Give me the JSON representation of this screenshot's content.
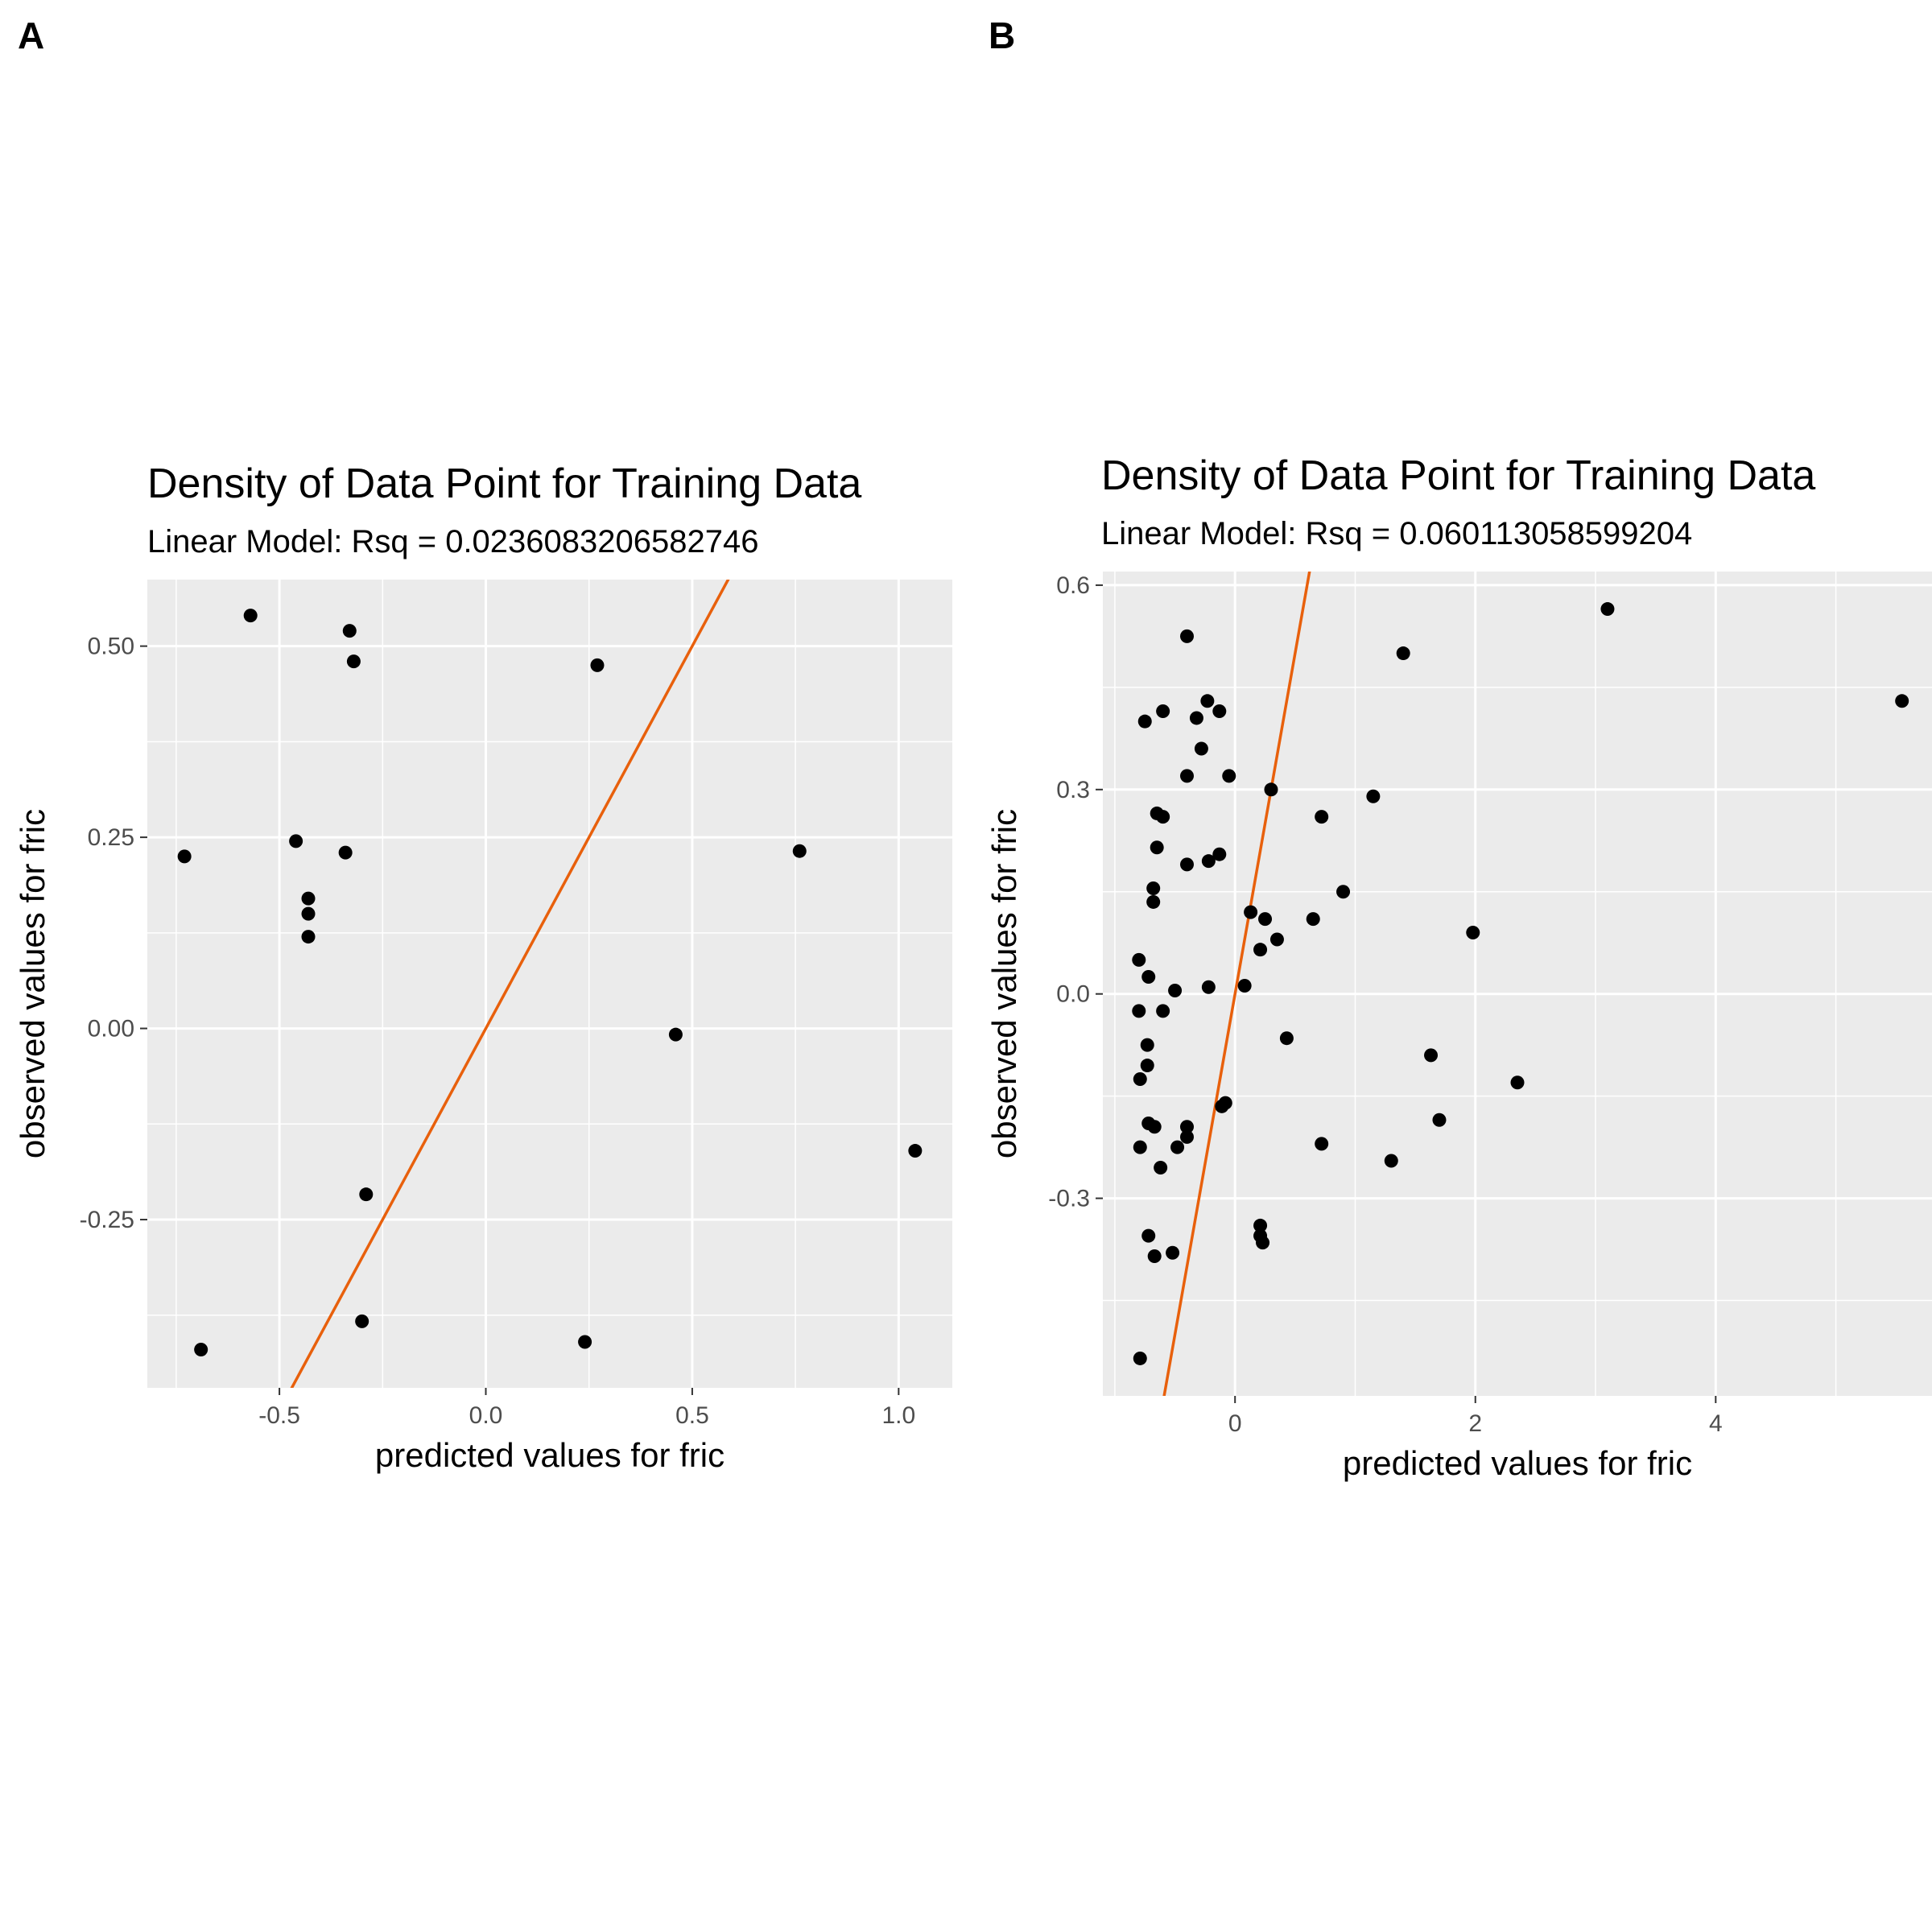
{
  "panels": [
    {
      "tag": "A",
      "chart_data": {
        "type": "scatter",
        "title": "Density of Data Point for Training Data",
        "subtitle": "Linear Model: Rsq = 0.0236083206582746",
        "xlabel": "predicted values for fric",
        "ylabel": "observed values for fric",
        "xlim": [
          -0.82,
          1.13
        ],
        "ylim": [
          -0.47,
          0.587
        ],
        "x_ticks": [
          -0.5,
          0.0,
          0.5,
          1.0
        ],
        "x_tick_labels": [
          "-0.5",
          "0.0",
          "0.5",
          "1.0"
        ],
        "y_ticks": [
          -0.25,
          0.0,
          0.25,
          0.5
        ],
        "y_tick_labels": [
          "-0.25",
          "0.00",
          "0.25",
          "0.50"
        ],
        "grid": true,
        "points": {
          "x": [
            -0.57,
            -0.33,
            -0.32,
            0.27,
            -0.73,
            -0.46,
            -0.34,
            0.76,
            -0.43,
            -0.43,
            -0.43,
            0.46,
            1.04,
            -0.29,
            -0.3,
            -0.69,
            0.24
          ],
          "y": [
            0.54,
            0.52,
            0.48,
            0.475,
            0.225,
            0.245,
            0.23,
            0.232,
            0.17,
            0.15,
            0.12,
            -0.008,
            -0.16,
            -0.217,
            -0.383,
            -0.42,
            -0.41
          ]
        },
        "reference_line": {
          "slope": 1,
          "intercept": 0,
          "color": "#e8600c"
        }
      }
    },
    {
      "tag": "B",
      "chart_data": {
        "type": "scatter",
        "title": "Density of Data Point for Training Data",
        "subtitle": "Linear Model: Rsq = 0.060113058599204",
        "xlabel": "predicted values for fric",
        "ylabel": "observed values for fric",
        "xlim": [
          -1.1,
          5.8
        ],
        "ylim": [
          -0.59,
          0.62
        ],
        "x_ticks": [
          0,
          2,
          4
        ],
        "x_tick_labels": [
          "0",
          "2",
          "4"
        ],
        "y_ticks": [
          -0.3,
          0.0,
          0.3,
          0.6
        ],
        "y_tick_labels": [
          "-0.3",
          "0.0",
          "0.3",
          "0.6"
        ],
        "grid": true,
        "points": {
          "x": [
            -0.4,
            3.1,
            1.4,
            5.55,
            -0.75,
            -0.6,
            -0.23,
            -0.32,
            -0.13,
            -0.28,
            -0.4,
            -0.05,
            0.3,
            1.15,
            0.72,
            -0.6,
            -0.65,
            -0.65,
            -0.13,
            -0.4,
            -0.22,
            -0.68,
            -0.68,
            0.9,
            0.13,
            0.25,
            0.65,
            1.98,
            0.21,
            0.35,
            -0.8,
            -0.72,
            0.08,
            -0.5,
            -0.22,
            -0.8,
            -0.6,
            0.43,
            -0.73,
            1.63,
            -0.73,
            -0.79,
            2.35,
            -0.08,
            -0.11,
            -0.72,
            -0.67,
            -0.4,
            1.7,
            -0.4,
            0.72,
            -0.48,
            1.3,
            -0.62,
            -0.79,
            0.21,
            -0.72,
            0.21,
            0.23,
            -0.52,
            -0.67,
            -0.79
          ],
          "y": [
            0.525,
            0.565,
            0.5,
            0.43,
            0.4,
            0.415,
            0.43,
            0.405,
            0.415,
            0.36,
            0.32,
            0.32,
            0.3,
            0.29,
            0.26,
            0.26,
            0.265,
            0.215,
            0.205,
            0.19,
            0.195,
            0.155,
            0.135,
            0.15,
            0.12,
            0.11,
            0.11,
            0.09,
            0.065,
            0.08,
            0.05,
            0.025,
            0.012,
            0.005,
            0.01,
            -0.025,
            -0.025,
            -0.065,
            -0.075,
            -0.09,
            -0.105,
            -0.125,
            -0.13,
            -0.16,
            -0.165,
            -0.19,
            -0.195,
            -0.195,
            -0.185,
            -0.21,
            -0.22,
            -0.225,
            -0.245,
            -0.255,
            -0.225,
            -0.34,
            -0.355,
            -0.355,
            -0.365,
            -0.38,
            -0.385,
            -0.535
          ]
        },
        "reference_line": {
          "slope": 1,
          "intercept": 0,
          "color": "#e8600c"
        }
      }
    }
  ]
}
